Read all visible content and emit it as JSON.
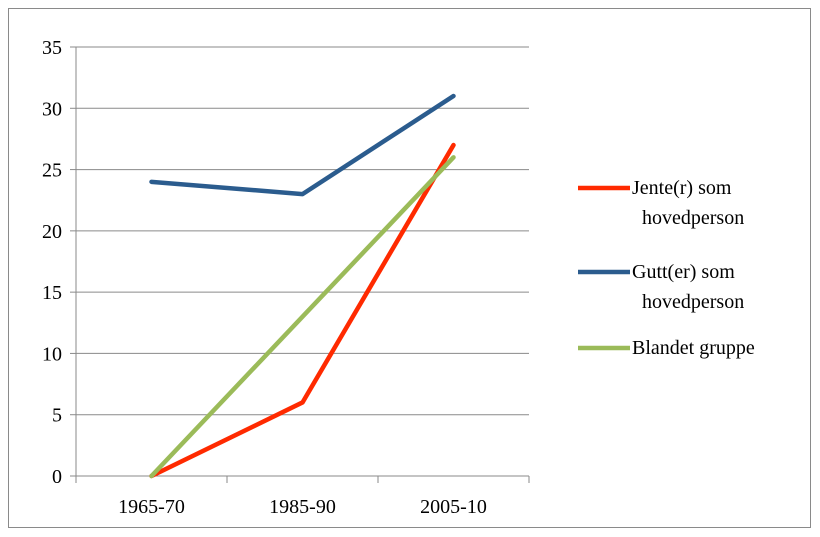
{
  "chart_data": {
    "type": "line",
    "categories": [
      "1965-70",
      "1985-90",
      "2005-10"
    ],
    "series": [
      {
        "name": "Jente(r) som hovedperson",
        "name_lines": [
          "Jente(r) som",
          "hovedperson"
        ],
        "values": [
          0,
          6,
          27
        ],
        "color": "#ff2a00"
      },
      {
        "name": "Gutt(er) som hovedperson",
        "name_lines": [
          "Gutt(er) som",
          "hovedperson"
        ],
        "values": [
          24,
          23,
          31
        ],
        "color": "#2b5c8e"
      },
      {
        "name": "Blandet gruppe",
        "name_lines": [
          "Blandet gruppe"
        ],
        "values": [
          0,
          13,
          26
        ],
        "color": "#9bbb59"
      }
    ],
    "title": "",
    "xlabel": "",
    "ylabel": "",
    "ylim": [
      0,
      35
    ],
    "yticks": [
      0,
      5,
      10,
      15,
      20,
      25,
      30,
      35
    ],
    "grid": true,
    "legend": "right",
    "gridColor": "#8a8a8a",
    "axisColor": "#8a8a8a"
  }
}
